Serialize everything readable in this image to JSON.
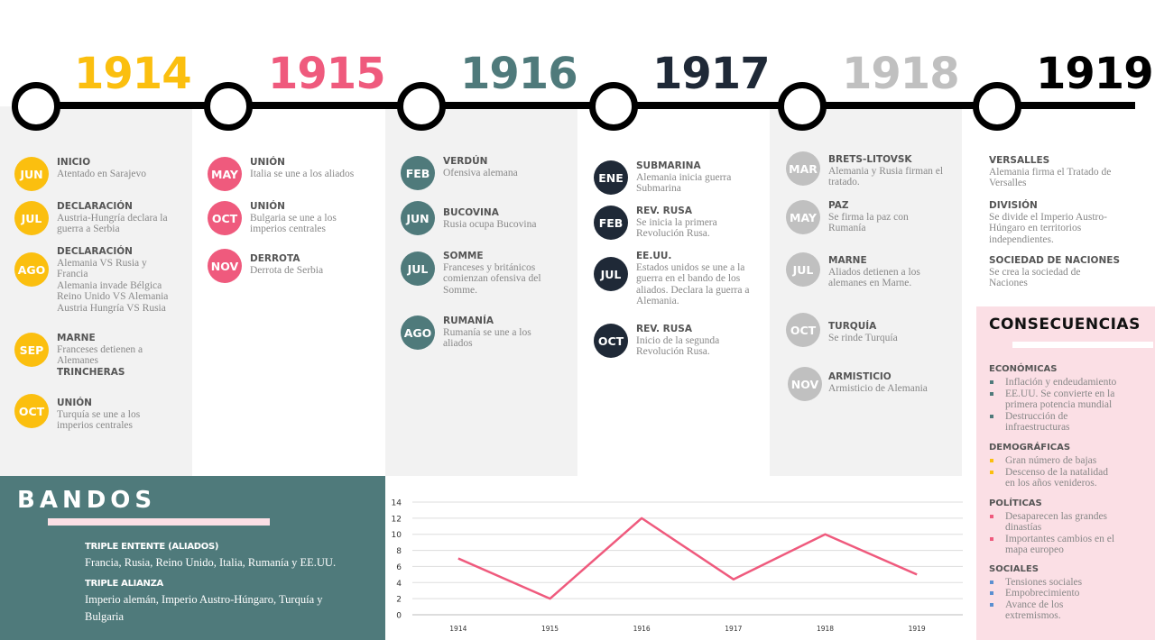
{
  "years": [
    "1914",
    "1915",
    "1916",
    "1917",
    "1918",
    "1919"
  ],
  "year_colors": [
    "#fbbf0f",
    "#ef5a7d",
    "#4f7a7b",
    "#1f2937",
    "#c0c0c0",
    "#000000"
  ],
  "col1914": [
    {
      "m": "JUN",
      "t": "INICIO",
      "d": "Atentado en Sarajevo"
    },
    {
      "m": "JUL",
      "t": "DECLARACIÓN",
      "d": "Austria-Hungría declara la\nguerra a  Serbia"
    },
    {
      "m": "AGO",
      "t": "DECLARACIÓN",
      "d": "Alemania VS Rusia y\nFrancia\nAlemania invade Bélgica\nReino Unido VS Alemania\nAustria Hungría VS Rusia"
    },
    {
      "m": "SEP",
      "t": "MARNE",
      "d": "Franceses detienen a\nAlemanes",
      "t2": "TRINCHERAS"
    },
    {
      "m": "OCT",
      "t": "UNIÓN",
      "d": "Turquía se une a los\nimperios centrales"
    }
  ],
  "col1915": [
    {
      "m": "MAY",
      "t": "UNIÓN",
      "d": "Italia se une a los aliados"
    },
    {
      "m": "OCT",
      "t": "UNIÓN",
      "d": "Bulgaria se une a los\nimperios centrales"
    },
    {
      "m": "NOV",
      "t": "DERROTA",
      "d": "Derrota de Serbia"
    }
  ],
  "col1916": [
    {
      "m": "FEB",
      "t": "VERDÚN",
      "d": "Ofensiva alemana"
    },
    {
      "m": "JUN",
      "t": "BUCOVINA",
      "d": "Rusia ocupa Bucovina"
    },
    {
      "m": "JUL",
      "t": "SOMME",
      "d": "Franceses y británicos\ncomienzan ofensiva del\nSomme."
    },
    {
      "m": "AGO",
      "t": "RUMANÍA",
      "d": "Rumanía se une a los\naliados"
    }
  ],
  "col1917": [
    {
      "m": "ENE",
      "t": "SUBMARINA",
      "d": "Alemania inicia guerra\nSubmarina"
    },
    {
      "m": "FEB",
      "t": "REV. RUSA",
      "d": "Se inicia la primera\nRevolución Rusa."
    },
    {
      "m": "JUL",
      "t": "EE.UU.",
      "d": "Estados unidos se une a la\nguerra en el bando de los\naliados. Declara la guerra a\nAlemania."
    },
    {
      "m": "OCT",
      "t": "REV. RUSA",
      "d": "Inicio de la segunda\nRevolución Rusa."
    }
  ],
  "col1918": [
    {
      "m": "MAR",
      "t": "BRETS-LITOVSK",
      "d": "Alemania y Rusia firman el\ntratado."
    },
    {
      "m": "MAY",
      "t": "PAZ",
      "d": "Se firma la paz con\nRumanía"
    },
    {
      "m": "JUL",
      "t": "MARNE",
      "d": "Aliados detienen a los\nalemanes en Marne."
    },
    {
      "m": "OCT",
      "t": "TURQUÍA",
      "d": "Se rinde Turquía"
    },
    {
      "m": "NOV",
      "t": "ARMISTICIO",
      "d": "Armisticio de Alemania"
    }
  ],
  "col1919": [
    {
      "t": "VERSALLES",
      "d": "Alemania firma el Tratado de\nVersalles"
    },
    {
      "t": "DIVISIÓN",
      "d": "Se divide el Imperio Austro-\nHúngaro en territorios\nindependientes."
    },
    {
      "t": "SOCIEDAD DE NACIONES",
      "d": "Se crea la sociedad de\nNaciones"
    }
  ],
  "consecuencias": {
    "title": "CONSECUENCIAS",
    "groups": [
      {
        "name": "ECONÓMICAS",
        "color": "#4f7a7b",
        "items": [
          "Inflación y endeudamiento",
          "EE.UU. Se convierte en la\nprimera potencia mundial",
          "Destrucción de\ninfraestructuras"
        ]
      },
      {
        "name": "DEMOGRÁFICAS",
        "color": "#fbbf0f",
        "items": [
          "Gran número de bajas",
          "Descenso de la natalidad\nen los años venideros."
        ]
      },
      {
        "name": "POLÍTICAS",
        "color": "#ef5a7d",
        "items": [
          "Desaparecen las grandes\ndinastías",
          "Importantes cambios en el\nmapa europeo"
        ]
      },
      {
        "name": "SOCIALES",
        "color": "#5b8fd1",
        "items": [
          "Tensiones sociales",
          "Empobrecimiento",
          "Avance de los\nextremismos."
        ]
      }
    ]
  },
  "bandos": {
    "title": "BANDOS",
    "h1": "TRIPLE ENTENTE (ALIADOS)",
    "t1": "Francia, Rusia, Reino Unido, Italia, Rumanía y EE.UU.",
    "h2": "TRIPLE ALIANZA",
    "t2": "Imperio alemán, Imperio Austro-Húngaro, Turquía y Bulgaria"
  },
  "chart_data": {
    "type": "line",
    "categories": [
      "1914",
      "1915",
      "1916",
      "1917",
      "1918",
      "1919"
    ],
    "series": [
      {
        "values": [
          7,
          2,
          12,
          4.4,
          10,
          5
        ]
      }
    ],
    "ylim": [
      0,
      14
    ],
    "yticks": [
      0,
      2,
      4,
      6,
      8,
      10,
      12,
      14
    ],
    "grid": true,
    "color": "#ef5a7d"
  }
}
